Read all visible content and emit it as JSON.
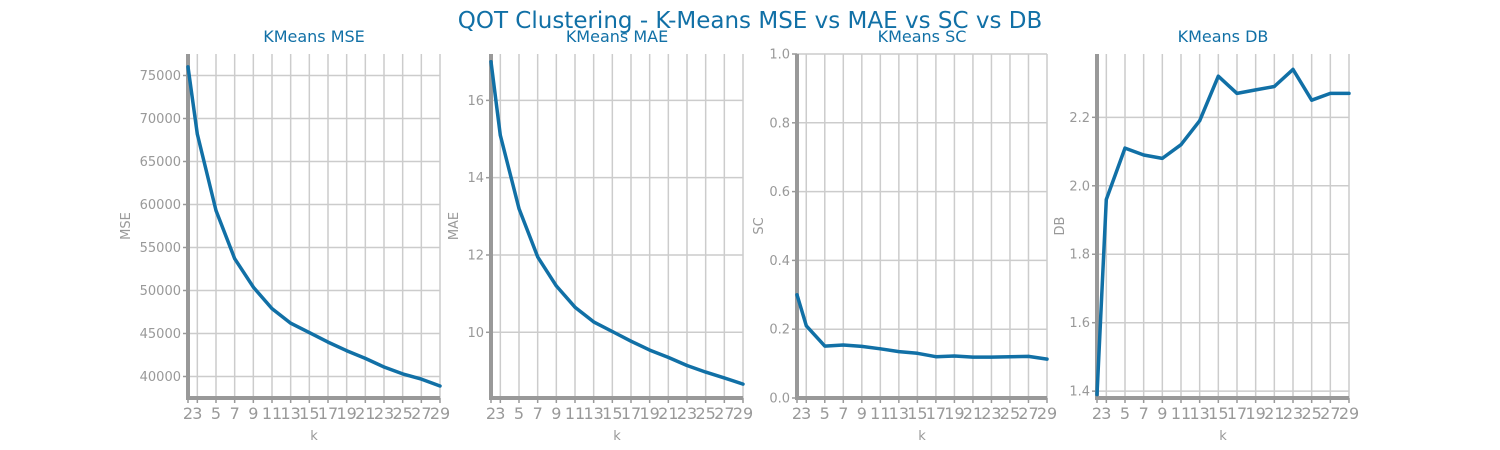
{
  "title": "QOT Clustering - K-Means MSE vs MAE vs SC vs DB",
  "colors": {
    "line": "#1170a6",
    "title": "#1170a6",
    "axis": "#999999",
    "grid": "#cccccc"
  },
  "chart_data": [
    {
      "type": "line",
      "title": "KMeans MSE",
      "xlabel": "k",
      "ylabel": "MSE",
      "x": [
        2,
        3,
        5,
        7,
        9,
        11,
        13,
        15,
        17,
        19,
        21,
        23,
        25,
        27,
        29
      ],
      "xticks": [
        2,
        3,
        5,
        7,
        9,
        11,
        13,
        15,
        17,
        19,
        21,
        23,
        25,
        27,
        29
      ],
      "yticks": [
        40000,
        45000,
        50000,
        55000,
        60000,
        65000,
        70000,
        75000
      ],
      "ylim": [
        37500,
        77500
      ],
      "series": [
        {
          "values": [
            76000,
            68200,
            59300,
            53700,
            50400,
            47900,
            46200,
            45100,
            44000,
            43000,
            42100,
            41100,
            40300,
            39700,
            38900
          ]
        }
      ]
    },
    {
      "type": "line",
      "title": "KMeans MAE",
      "xlabel": "k",
      "ylabel": "MAE",
      "x": [
        2,
        3,
        5,
        7,
        9,
        11,
        13,
        15,
        17,
        19,
        21,
        23,
        25,
        27,
        29
      ],
      "xticks": [
        2,
        3,
        5,
        7,
        9,
        11,
        13,
        15,
        17,
        19,
        21,
        23,
        25,
        27,
        29
      ],
      "yticks": [
        10,
        12,
        14,
        16
      ],
      "ylim": [
        8.3,
        17.2
      ],
      "series": [
        {
          "values": [
            17.0,
            15.1,
            13.2,
            11.95,
            11.2,
            10.65,
            10.27,
            10.02,
            9.77,
            9.54,
            9.35,
            9.14,
            8.97,
            8.82,
            8.66
          ]
        }
      ]
    },
    {
      "type": "line",
      "title": "KMeans SC",
      "xlabel": "k",
      "ylabel": "SC",
      "x": [
        2,
        3,
        5,
        7,
        9,
        11,
        13,
        15,
        17,
        19,
        21,
        23,
        25,
        27,
        29
      ],
      "xticks": [
        2,
        3,
        5,
        7,
        9,
        11,
        13,
        15,
        17,
        19,
        21,
        23,
        25,
        27,
        29
      ],
      "yticks": [
        0.0,
        0.2,
        0.4,
        0.6,
        0.8,
        1.0
      ],
      "ylim": [
        0.0,
        1.0
      ],
      "series": [
        {
          "values": [
            0.3,
            0.21,
            0.151,
            0.154,
            0.15,
            0.143,
            0.135,
            0.13,
            0.12,
            0.122,
            0.119,
            0.119,
            0.12,
            0.121,
            0.113
          ]
        }
      ]
    },
    {
      "type": "line",
      "title": "KMeans DB",
      "xlabel": "k",
      "ylabel": "DB",
      "x": [
        2,
        3,
        5,
        7,
        9,
        11,
        13,
        15,
        17,
        19,
        21,
        23,
        25,
        27,
        29
      ],
      "xticks": [
        2,
        3,
        5,
        7,
        9,
        11,
        13,
        15,
        17,
        19,
        21,
        23,
        25,
        27,
        29
      ],
      "yticks": [
        1.4,
        1.6,
        1.8,
        2.0,
        2.2
      ],
      "ylim": [
        1.38,
        2.385
      ],
      "series": [
        {
          "values": [
            1.39,
            1.96,
            2.11,
            2.09,
            2.08,
            2.12,
            2.19,
            2.32,
            2.27,
            2.28,
            2.29,
            2.34,
            2.25,
            2.27,
            2.27
          ]
        }
      ]
    }
  ]
}
